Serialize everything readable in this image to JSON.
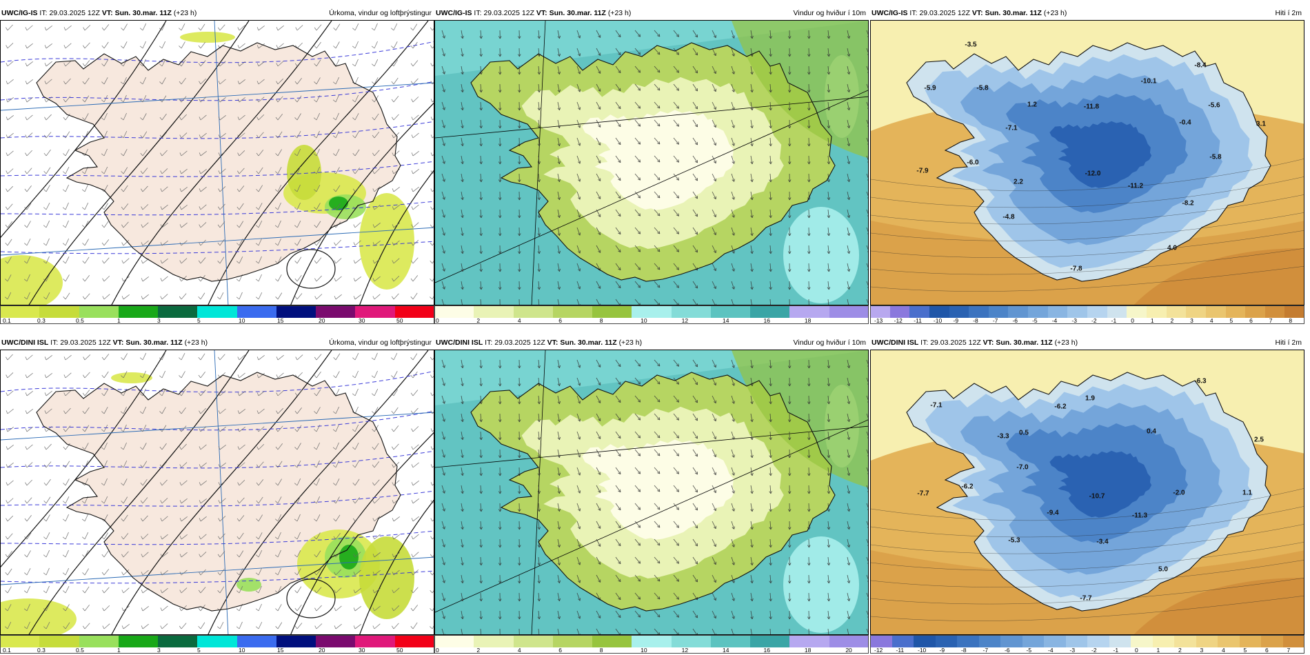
{
  "panels": [
    {
      "id": "p1",
      "model": "UWC/IG-IS",
      "it_label": "IT:",
      "it": "29.03.2025 12Z",
      "vt_label": "VT:",
      "vt": "Sun. 30.mar. 11Z",
      "lead": "(+23 h)",
      "product": "Úrkoma, vindur og loftþrýstingur",
      "type": "precip",
      "colorbar": [
        "0.1",
        "0.3",
        "0.5",
        "1",
        "3",
        "5",
        "10",
        "15",
        "20",
        "30",
        "50"
      ],
      "map_labels": []
    },
    {
      "id": "p2",
      "model": "UWC/IG-IS",
      "it_label": "IT:",
      "it": "29.03.2025 12Z",
      "vt_label": "VT:",
      "vt": "Sun. 30.mar. 11Z",
      "lead": "(+23 h)",
      "product": "Vindur og hviður í 10m",
      "type": "wind",
      "colorbar": [
        "0",
        "2",
        "4",
        "6",
        "8",
        "10",
        "12",
        "14",
        "16",
        "18"
      ],
      "map_labels": []
    },
    {
      "id": "p3",
      "model": "UWC/IG-IS",
      "it_label": "IT:",
      "it": "29.03.2025 12Z",
      "vt_label": "VT:",
      "vt": "Sun. 30.mar. 11Z",
      "lead": "(+23 h)",
      "product": "Hiti í 2m",
      "type": "temp",
      "colorbar": [
        "-13",
        "-12",
        "-11",
        "-10",
        "-9",
        "-8",
        "-7",
        "-6",
        "-5",
        "-4",
        "-3",
        "-2",
        "-1",
        "0",
        "1",
        "2",
        "3",
        "4",
        "5",
        "6",
        "7",
        "8"
      ],
      "map_labels": [
        "-3.5",
        "-5.9",
        "-5.8",
        "-10.1",
        "-8.4",
        "1.2",
        "-11.8",
        "-5.6",
        "-7.1",
        "-0.4",
        "3.1",
        "-6.0",
        "-7.9",
        "2.2",
        "-12.0",
        "-11.2",
        "-5.8",
        "-8.2",
        "-4.8",
        "4.0",
        "-7.8"
      ]
    },
    {
      "id": "p4",
      "model": "UWC/DINI ISL",
      "it_label": "IT:",
      "it": "29.03.2025 12Z",
      "vt_label": "VT:",
      "vt": "Sun. 30.mar. 11Z",
      "lead": "(+23 h)",
      "product": "Úrkoma, vindur og loftþrýstingur",
      "type": "precip",
      "colorbar": [
        "0.1",
        "0.3",
        "0.5",
        "1",
        "3",
        "5",
        "10",
        "15",
        "20",
        "30",
        "50"
      ],
      "map_labels": []
    },
    {
      "id": "p5",
      "model": "UWC/DINI ISL",
      "it_label": "IT:",
      "it": "29.03.2025 12Z",
      "vt_label": "VT:",
      "vt": "Sun. 30.mar. 11Z",
      "lead": "(+23 h)",
      "product": "Vindur og hviður í 10m",
      "type": "wind",
      "colorbar": [
        "0",
        "2",
        "4",
        "6",
        "8",
        "10",
        "12",
        "14",
        "16",
        "18",
        "20"
      ],
      "map_labels": []
    },
    {
      "id": "p6",
      "model": "UWC/DINI ISL",
      "it_label": "IT:",
      "it": "29.03.2025 12Z",
      "vt_label": "VT:",
      "vt": "Sun. 30.mar. 11Z",
      "lead": "(+23 h)",
      "product": "Hiti í 2m",
      "type": "temp",
      "colorbar": [
        "-12",
        "-11",
        "-10",
        "-9",
        "-8",
        "-7",
        "-6",
        "-5",
        "-4",
        "-3",
        "-2",
        "-1",
        "0",
        "1",
        "2",
        "3",
        "4",
        "5",
        "6",
        "7"
      ],
      "map_labels": [
        "-6.3",
        "-7.1",
        "-6.2",
        "1.9",
        "0.5",
        "-3.3",
        "0.4",
        "2.5",
        "-7.0",
        "-7.7",
        "-6.2",
        "-10.7",
        "-2.0",
        "-9.4",
        "-11.3",
        "1.1",
        "-5.3",
        "-3.4",
        "5.0",
        "-7.7"
      ]
    }
  ],
  "colors": {
    "precip": [
      "#d9e84e",
      "#c6dc3a",
      "#99e05c",
      "#18a818",
      "#0a6a3e",
      "#00e6d8",
      "#3a6bef",
      "#000f7d",
      "#7a0a6e",
      "#e0187a",
      "#f20018"
    ],
    "wind": [
      "#fdfde6",
      "#e9f3b6",
      "#cfe58c",
      "#b6d562",
      "#97c43e",
      "#a8f0ec",
      "#84dcd8",
      "#5cc3c0",
      "#3aa5a6",
      "#b6a8f0",
      "#9d8de6"
    ],
    "temp": [
      "#b8a8ef",
      "#8a78dd",
      "#4a6fcc",
      "#1f56a8",
      "#2a62b2",
      "#3b73bf",
      "#4c84c8",
      "#6195d1",
      "#74a5da",
      "#89b5e2",
      "#9fc5e9",
      "#b6d4ef",
      "#cfe3ee",
      "#f6f6c9",
      "#f7efb0",
      "#f3e29a",
      "#efd483",
      "#eac56e",
      "#e4b45a",
      "#dba24a",
      "#d18f3c",
      "#c47c30"
    ],
    "land_precip": "#f7e8de",
    "sea_precip": "#ffffff",
    "coast": "#111111"
  }
}
